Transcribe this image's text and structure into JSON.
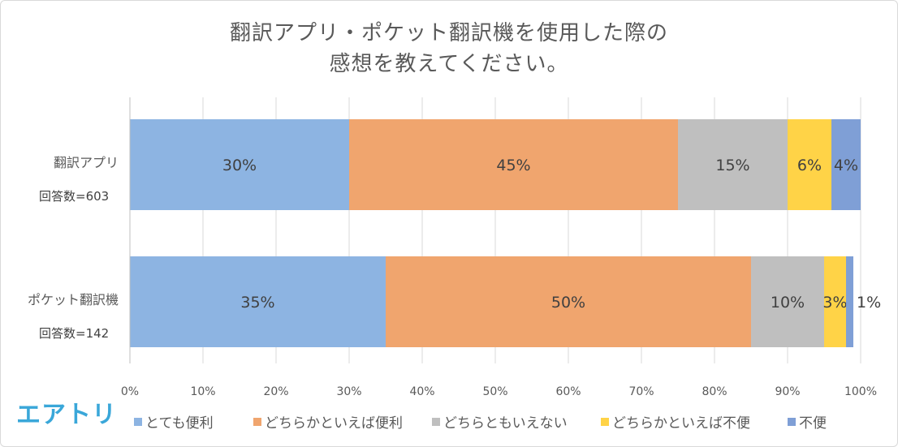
{
  "title_line1": "翻訳アプリ・ポケット翻訳機を使用した際の",
  "title_line2": "感想を教えてください。",
  "logo_text": "エアトリ",
  "chart_data": {
    "type": "bar",
    "orientation": "horizontal-stacked-100",
    "categories": [
      {
        "name": "翻訳アプリ",
        "respondents": "回答数=603"
      },
      {
        "name": "ポケット翻訳機",
        "respondents": "回答数=142"
      }
    ],
    "series": [
      {
        "name": "とても便利",
        "color": "#8db4e2",
        "values": [
          30,
          35
        ],
        "labels": [
          "30%",
          "35%"
        ]
      },
      {
        "name": "どちらかといえば便利",
        "color": "#f0a56e",
        "values": [
          45,
          50
        ],
        "labels": [
          "45%",
          "50%"
        ]
      },
      {
        "name": "どちらともいえない",
        "color": "#bfbfbf",
        "values": [
          15,
          10
        ],
        "labels": [
          "15%",
          "10%"
        ]
      },
      {
        "name": "どちらかといえば不便",
        "color": "#ffd347",
        "values": [
          6,
          3
        ],
        "labels": [
          "6%",
          "3%"
        ]
      },
      {
        "name": "不便",
        "color": "#7f9fd6",
        "values": [
          4,
          1
        ],
        "labels": [
          "4%",
          "1%"
        ]
      }
    ],
    "xlim": [
      0,
      100
    ],
    "xticks": [
      "0%",
      "10%",
      "20%",
      "30%",
      "40%",
      "50%",
      "60%",
      "70%",
      "80%",
      "90%",
      "100%"
    ],
    "grid": true,
    "legend_position": "bottom"
  }
}
